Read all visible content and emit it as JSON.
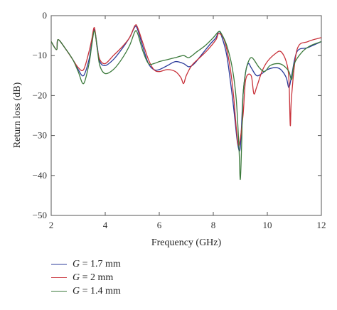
{
  "chart_data": {
    "type": "line",
    "xlabel": "Frequency (GHz)",
    "ylabel": "Return loss (dB)",
    "xlim": [
      2,
      12
    ],
    "ylim": [
      -50,
      0
    ],
    "xticks": [
      2,
      4,
      6,
      8,
      10,
      12
    ],
    "yticks": [
      0,
      -10,
      -20,
      -30,
      -40,
      -50
    ],
    "grid": false,
    "legend_position": "bottom-left",
    "series": [
      {
        "name": "G = 1.7 mm",
        "name_var": "G",
        "name_rest": " = 1.7 mm",
        "color": "#2b3a9a",
        "x": [
          2.0,
          2.2,
          2.25,
          2.5,
          2.8,
          3.0,
          3.2,
          3.4,
          3.5,
          3.6,
          3.7,
          3.8,
          4.0,
          4.3,
          4.6,
          4.9,
          5.1,
          5.2,
          5.4,
          5.6,
          5.8,
          6.0,
          6.3,
          6.6,
          6.9,
          7.1,
          7.3,
          7.6,
          7.9,
          8.1,
          8.2,
          8.3,
          8.5,
          8.7,
          8.8,
          8.9,
          9.0,
          9.1,
          9.2,
          9.3,
          9.4,
          9.6,
          9.8,
          10.0,
          10.3,
          10.5,
          10.7,
          10.8,
          10.9,
          11.1,
          11.5,
          12.0
        ],
        "y": [
          -6.5,
          -8.5,
          -6.0,
          -8.0,
          -11.0,
          -13.5,
          -15.0,
          -11.0,
          -7.0,
          -3.5,
          -7.5,
          -11.5,
          -12.5,
          -11.0,
          -8.5,
          -5.5,
          -2.8,
          -3.5,
          -8.0,
          -12.0,
          -13.5,
          -13.5,
          -12.5,
          -11.5,
          -12.0,
          -12.8,
          -12.0,
          -9.5,
          -7.0,
          -5.5,
          -4.0,
          -5.0,
          -10.0,
          -20.0,
          -26.0,
          -32.0,
          -33.0,
          -20.0,
          -14.0,
          -12.0,
          -13.0,
          -15.0,
          -14.5,
          -13.5,
          -13.0,
          -13.5,
          -15.5,
          -18.0,
          -15.0,
          -9.0,
          -8.0,
          -6.5
        ]
      },
      {
        "name": "G = 2 mm",
        "name_var": "G",
        "name_rest": " = 2 mm",
        "color": "#c8323a",
        "x": [
          2.0,
          2.2,
          2.25,
          2.5,
          2.8,
          3.0,
          3.2,
          3.4,
          3.5,
          3.6,
          3.7,
          3.8,
          4.0,
          4.3,
          4.6,
          4.9,
          5.1,
          5.2,
          5.4,
          5.6,
          5.8,
          6.0,
          6.3,
          6.6,
          6.8,
          6.9,
          7.0,
          7.2,
          7.5,
          7.8,
          8.1,
          8.2,
          8.4,
          8.6,
          8.75,
          8.85,
          8.95,
          9.1,
          9.2,
          9.4,
          9.5,
          9.6,
          9.8,
          10.0,
          10.3,
          10.5,
          10.7,
          10.8,
          10.85,
          10.9,
          11.1,
          11.5,
          12.0
        ],
        "y": [
          -6.5,
          -8.5,
          -6.0,
          -8.0,
          -11.0,
          -13.0,
          -13.5,
          -9.0,
          -6.0,
          -3.0,
          -8.0,
          -11.0,
          -12.0,
          -10.0,
          -8.0,
          -5.5,
          -2.5,
          -3.0,
          -7.0,
          -11.0,
          -13.5,
          -14.0,
          -13.5,
          -14.0,
          -15.5,
          -17.0,
          -15.0,
          -12.5,
          -10.5,
          -8.5,
          -6.0,
          -4.5,
          -6.0,
          -12.0,
          -20.0,
          -28.0,
          -32.5,
          -25.0,
          -16.0,
          -15.0,
          -19.5,
          -18.0,
          -14.0,
          -11.5,
          -9.5,
          -9.0,
          -11.5,
          -16.0,
          -27.5,
          -20.0,
          -8.5,
          -6.5,
          -5.5
        ]
      },
      {
        "name": "G = 1.4 mm",
        "name_var": "G",
        "name_rest": " = 1.4 mm",
        "color": "#3c7a3c",
        "x": [
          2.0,
          2.2,
          2.25,
          2.5,
          2.8,
          3.0,
          3.2,
          3.4,
          3.5,
          3.6,
          3.7,
          3.8,
          4.0,
          4.3,
          4.6,
          4.9,
          5.1,
          5.2,
          5.4,
          5.6,
          5.8,
          6.0,
          6.3,
          6.6,
          6.9,
          7.1,
          7.4,
          7.7,
          8.0,
          8.2,
          8.3,
          8.5,
          8.7,
          8.85,
          8.95,
          9.0,
          9.05,
          9.1,
          9.2,
          9.3,
          9.4,
          9.5,
          9.7,
          9.9,
          10.1,
          10.4,
          10.6,
          10.8,
          10.9,
          11.0,
          11.3,
          11.6,
          12.0
        ],
        "y": [
          -6.5,
          -8.5,
          -6.0,
          -8.0,
          -11.0,
          -14.0,
          -17.0,
          -12.0,
          -7.5,
          -3.8,
          -8.0,
          -12.5,
          -14.5,
          -13.5,
          -11.0,
          -7.5,
          -4.0,
          -4.5,
          -9.0,
          -12.0,
          -12.0,
          -11.5,
          -11.0,
          -10.5,
          -10.0,
          -10.5,
          -9.0,
          -7.5,
          -5.5,
          -4.0,
          -4.5,
          -7.5,
          -13.0,
          -21.0,
          -33.0,
          -41.0,
          -32.0,
          -20.0,
          -14.0,
          -11.5,
          -10.5,
          -11.0,
          -13.0,
          -14.0,
          -12.5,
          -12.0,
          -12.5,
          -14.0,
          -16.0,
          -12.0,
          -9.0,
          -7.5,
          -6.5
        ]
      }
    ]
  }
}
